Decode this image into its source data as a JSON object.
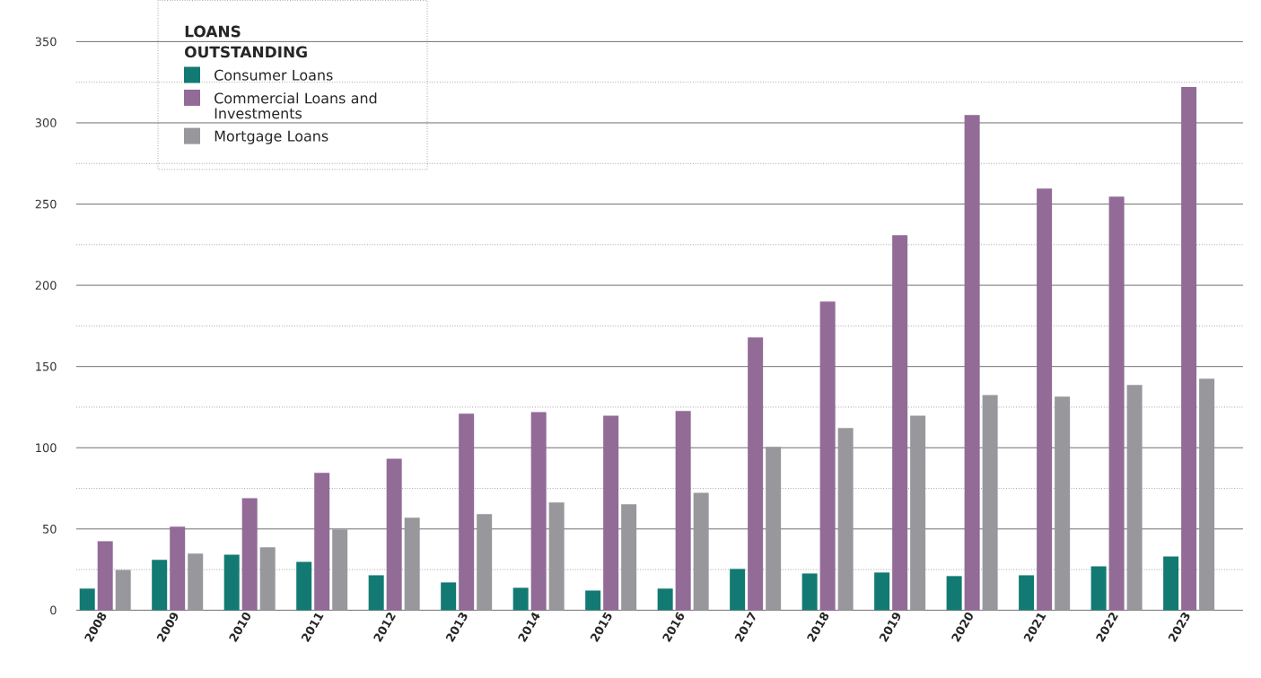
{
  "chart_data": {
    "type": "bar",
    "categories": [
      "2008",
      "2009",
      "2010",
      "2011",
      "2012",
      "2013",
      "2014",
      "2015",
      "2016",
      "2017",
      "2018",
      "2019",
      "2020",
      "2021",
      "2022",
      "2023"
    ],
    "legend_title": "LOANS OUTSTANDING",
    "series": [
      {
        "name": "Consumer Loans",
        "color": "#127a72",
        "values": [
          13.3,
          31,
          34.2,
          29.8,
          21.5,
          17.1,
          13.8,
          12.1,
          13.3,
          25.4,
          22.6,
          23.2,
          21,
          21.5,
          27,
          33.1
        ]
      },
      {
        "name": "Commercial Loans and Investments",
        "color": "#926b97",
        "values": [
          42.5,
          51.4,
          69,
          84.5,
          93.3,
          121,
          122,
          119.8,
          122.6,
          167.9,
          190,
          230.8,
          304.8,
          259.5,
          254.6,
          322
        ]
      },
      {
        "name": "Mortgage Loans",
        "color": "#98979c",
        "values": [
          24.8,
          34.8,
          38.7,
          49.7,
          56.9,
          59.1,
          66.3,
          65.2,
          72.3,
          100.5,
          112.1,
          119.8,
          132.5,
          131.4,
          138.6,
          142.5
        ]
      }
    ],
    "ylim": [
      0,
      350
    ],
    "yticks": [
      0,
      {
        "value": 25,
        "label": null
      },
      50,
      {
        "value": 75,
        "label": null
      },
      100,
      {
        "value": 125,
        "label": null
      },
      150,
      {
        "value": 175,
        "label": null
      },
      200,
      {
        "value": 225,
        "label": null
      },
      250,
      {
        "value": 275,
        "label": null
      },
      300,
      {
        "value": 325,
        "label": null
      },
      350
    ],
    "grid": "y",
    "legend": "top left"
  }
}
